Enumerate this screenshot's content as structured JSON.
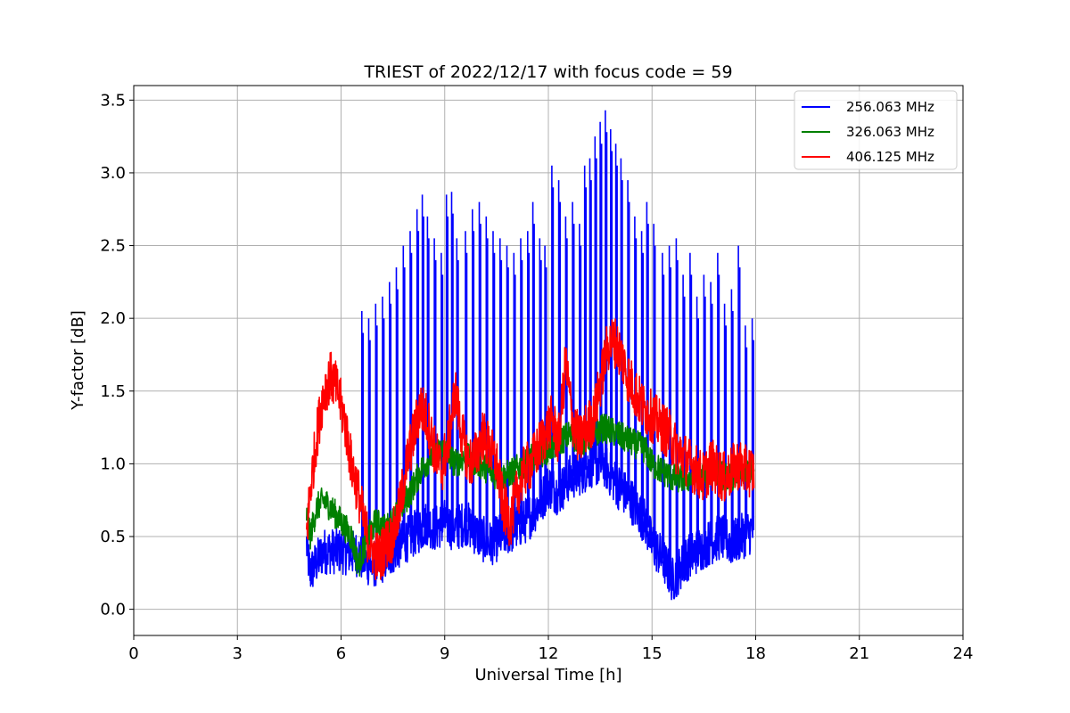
{
  "chart_data": {
    "type": "line",
    "title": "TRIEST of 2022/12/17 with focus code = 59",
    "xlabel": "Universal Time [h]",
    "ylabel": "Y-factor [dB]",
    "xlim": [
      0,
      24
    ],
    "ylim": [
      -0.18,
      3.6
    ],
    "xticks": [
      0,
      3,
      6,
      9,
      12,
      15,
      18,
      21,
      24
    ],
    "yticks": [
      0.0,
      0.5,
      1.0,
      1.5,
      2.0,
      2.5,
      3.0,
      3.5
    ],
    "ytick_labels": [
      "0.0",
      "0.5",
      "1.0",
      "1.5",
      "2.0",
      "2.5",
      "3.0",
      "3.5"
    ],
    "grid": true,
    "legend_position": "top-right",
    "series": [
      {
        "name": "256.063 MHz",
        "color": "#0000ff",
        "x": [
          5.0,
          5.1,
          5.5,
          6.0,
          6.5,
          6.6,
          6.9,
          7.3,
          7.5,
          8.0,
          8.3,
          8.5,
          8.7,
          9.0,
          9.3,
          9.6,
          10.0,
          10.3,
          10.6,
          11.0,
          11.3,
          11.5,
          11.8,
          12.0,
          12.3,
          12.6,
          13.0,
          13.3,
          13.6,
          14.0,
          14.4,
          14.8,
          15.0,
          15.3,
          15.6,
          16.0,
          16.3,
          16.6,
          17.0,
          17.3,
          17.6,
          17.95
        ],
        "y": [
          0.45,
          0.25,
          0.4,
          0.4,
          0.38,
          0.35,
          0.3,
          0.35,
          0.4,
          0.5,
          0.55,
          0.6,
          0.55,
          0.6,
          0.55,
          0.6,
          0.5,
          0.45,
          0.5,
          0.55,
          0.6,
          0.65,
          0.75,
          0.85,
          0.8,
          0.9,
          0.95,
          1.0,
          1.0,
          0.85,
          0.75,
          0.6,
          0.45,
          0.35,
          0.2,
          0.35,
          0.4,
          0.45,
          0.5,
          0.45,
          0.5,
          0.55
        ],
        "spikes": {
          "x": [
            6.6,
            6.8,
            7.0,
            7.2,
            7.4,
            7.6,
            7.8,
            8.0,
            8.2,
            8.35,
            8.5,
            8.7,
            8.9,
            9.05,
            9.2,
            9.35,
            9.6,
            9.8,
            10.0,
            10.2,
            10.4,
            10.6,
            10.8,
            11.0,
            11.2,
            11.4,
            11.55,
            11.75,
            11.9,
            12.1,
            12.3,
            12.5,
            12.7,
            12.9,
            13.05,
            13.2,
            13.35,
            13.5,
            13.65,
            13.8,
            13.95,
            14.1,
            14.3,
            14.5,
            14.7,
            14.85,
            15.05,
            15.3,
            15.5,
            15.7,
            15.9,
            16.1,
            16.3,
            16.5,
            16.7,
            16.9,
            17.1,
            17.3,
            17.5,
            17.7,
            17.9
          ],
          "y": [
            2.05,
            2.0,
            2.1,
            2.15,
            2.25,
            2.35,
            2.5,
            2.6,
            2.75,
            2.85,
            2.7,
            2.55,
            2.45,
            2.85,
            2.87,
            2.55,
            2.6,
            2.75,
            2.8,
            2.7,
            2.6,
            2.55,
            2.5,
            2.45,
            2.55,
            2.6,
            2.8,
            2.55,
            2.5,
            3.05,
            2.95,
            2.7,
            2.8,
            2.65,
            3.05,
            3.1,
            3.25,
            3.35,
            3.43,
            3.3,
            3.2,
            3.1,
            2.95,
            2.7,
            2.6,
            2.8,
            2.65,
            2.45,
            2.5,
            2.55,
            2.3,
            2.45,
            2.15,
            2.3,
            2.25,
            2.45,
            2.1,
            2.2,
            2.5,
            1.95,
            2.0
          ]
        }
      },
      {
        "name": "326.063 MHz",
        "color": "#008000",
        "x": [
          5.0,
          5.1,
          5.3,
          5.5,
          5.7,
          6.0,
          6.3,
          6.5,
          6.7,
          7.0,
          7.3,
          7.6,
          8.0,
          8.3,
          8.6,
          9.0,
          9.3,
          9.6,
          10.0,
          10.3,
          10.6,
          11.0,
          11.3,
          11.6,
          12.0,
          12.3,
          12.6,
          13.0,
          13.3,
          13.6,
          14.0,
          14.4,
          14.8,
          15.0,
          15.3,
          15.6,
          16.0,
          16.4,
          16.8,
          17.2,
          17.6,
          17.95
        ],
        "y": [
          0.65,
          0.5,
          0.7,
          0.75,
          0.7,
          0.6,
          0.5,
          0.3,
          0.45,
          0.6,
          0.55,
          0.65,
          0.8,
          0.95,
          1.05,
          1.1,
          1.0,
          1.05,
          1.0,
          0.95,
          0.9,
          0.95,
          1.0,
          1.05,
          1.1,
          1.15,
          1.2,
          1.15,
          1.2,
          1.25,
          1.2,
          1.15,
          1.1,
          1.0,
          0.95,
          0.9,
          0.9,
          0.9,
          0.95,
          0.9,
          0.95,
          0.95
        ]
      },
      {
        "name": "406.125 MHz",
        "color": "#ff0000",
        "x": [
          5.0,
          5.1,
          5.3,
          5.5,
          5.7,
          5.9,
          6.1,
          6.3,
          6.5,
          6.7,
          6.9,
          7.1,
          7.3,
          7.5,
          7.7,
          7.9,
          8.1,
          8.3,
          8.5,
          8.7,
          8.9,
          9.1,
          9.3,
          9.5,
          9.7,
          9.9,
          10.1,
          10.3,
          10.5,
          10.7,
          10.9,
          11.1,
          11.3,
          11.5,
          11.7,
          11.9,
          12.1,
          12.3,
          12.5,
          12.7,
          12.9,
          13.1,
          13.3,
          13.5,
          13.7,
          13.9,
          14.1,
          14.3,
          14.5,
          14.7,
          14.9,
          15.1,
          15.3,
          15.5,
          15.7,
          15.9,
          16.1,
          16.3,
          16.5,
          16.7,
          16.9,
          17.1,
          17.3,
          17.5,
          17.7,
          17.95
        ],
        "y": [
          0.5,
          0.8,
          1.2,
          1.5,
          1.6,
          1.5,
          1.3,
          1.0,
          0.8,
          0.55,
          0.4,
          0.35,
          0.45,
          0.5,
          0.7,
          1.0,
          1.2,
          1.4,
          1.3,
          1.1,
          0.95,
          1.15,
          1.5,
          1.2,
          1.0,
          1.05,
          1.2,
          1.1,
          1.0,
          0.7,
          0.6,
          0.8,
          0.95,
          1.0,
          1.1,
          1.2,
          1.3,
          1.15,
          1.7,
          1.3,
          1.15,
          1.25,
          1.3,
          1.55,
          1.8,
          1.85,
          1.75,
          1.6,
          1.5,
          1.4,
          1.35,
          1.3,
          1.25,
          1.2,
          1.1,
          1.05,
          1.0,
          0.95,
          0.9,
          1.0,
          0.95,
          0.9,
          0.95,
          1.0,
          0.95,
          0.95
        ]
      }
    ]
  }
}
